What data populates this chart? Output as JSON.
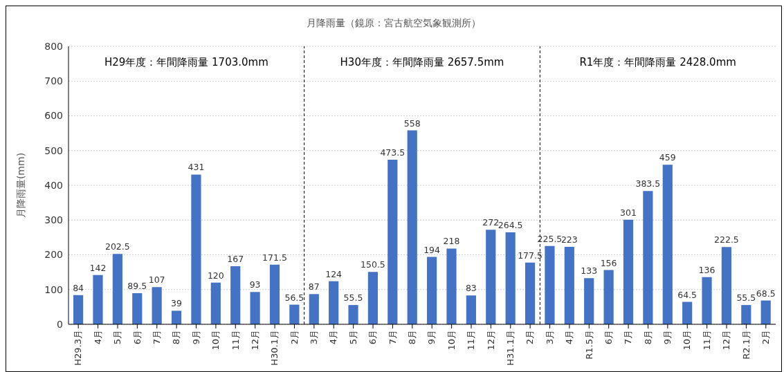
{
  "chart_data": {
    "type": "bar",
    "title": "月降雨量（鏡原：宮古航空気象観測所）",
    "ylabel": "月降雨量(mm)",
    "categories": [
      "H29.3月",
      "4月",
      "5月",
      "6月",
      "7月",
      "8月",
      "9月",
      "10月",
      "11月",
      "12月",
      "H30.1月",
      "2月",
      "3月",
      "4月",
      "5月",
      "6月",
      "7月",
      "8月",
      "9月",
      "10月",
      "11月",
      "12月",
      "H31.1月",
      "2月",
      "3月",
      "4月",
      "R1.5月",
      "6月",
      "7月",
      "8月",
      "9月",
      "10月",
      "11月",
      "12月",
      "R2.1月",
      "2月"
    ],
    "values": [
      84,
      142,
      202.5,
      89.5,
      107,
      39,
      431,
      120,
      167,
      93,
      171.5,
      56.5,
      87,
      124,
      55.5,
      150.5,
      473.5,
      558,
      194,
      218,
      83,
      272,
      264.5,
      177.5,
      225.5,
      223,
      133,
      156,
      301,
      383.5,
      459,
      64.5,
      136,
      222.5,
      55.5,
      68.5
    ],
    "color": "#4472c4",
    "data_labels": true,
    "ylim": [
      0,
      800
    ],
    "yticks": [
      0,
      100,
      200,
      300,
      400,
      500,
      600,
      700,
      800
    ],
    "grid": "y",
    "annotations": [
      "H29年度：年間降雨量 1703.0mm",
      "H30年度：年間降雨量 2657.5mm",
      "R1年度：年間降雨量 2428.0mm"
    ]
  }
}
